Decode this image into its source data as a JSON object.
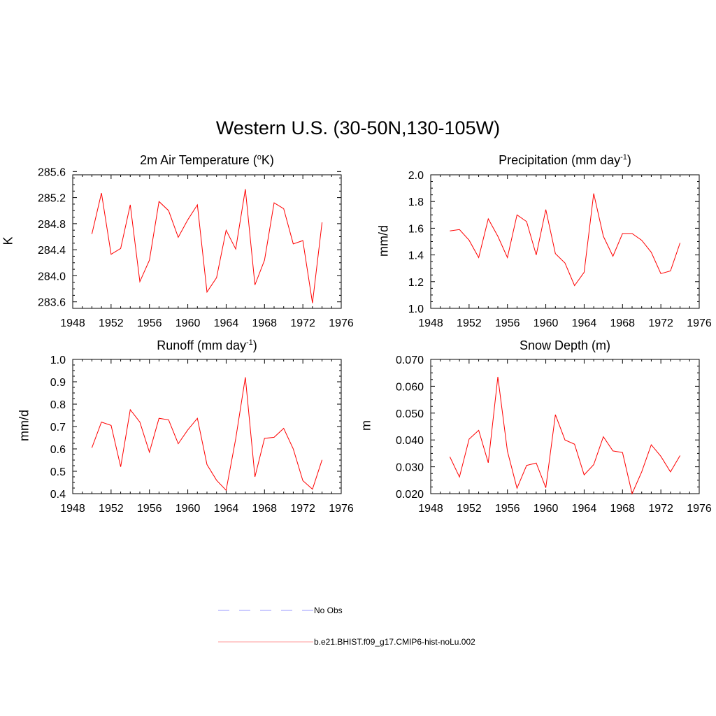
{
  "title": "Western U.S. (30-50N,130-105W)",
  "legend": {
    "items": [
      {
        "label": "No Obs",
        "color": "#9999ff",
        "style": "dashed"
      },
      {
        "label": "b.e21.BHIST.f09_g17.CMIP6-hist-noLu.002",
        "color": "#ff0000",
        "style": "solid"
      }
    ]
  },
  "chart_data": [
    {
      "type": "line",
      "title": "2m Air Temperature (",
      "title_sup": "o",
      "title_end": "K)",
      "ylabel": "K",
      "xlim": [
        1948,
        1976
      ],
      "xticks": [
        1948,
        1952,
        1956,
        1960,
        1964,
        1968,
        1972,
        1976
      ],
      "ylim": [
        283.5,
        285.55
      ],
      "yticks": [
        "283.6",
        "284.0",
        "284.4",
        "284.8",
        "285.2",
        "285.6"
      ],
      "series": [
        {
          "color": "#ff0000",
          "x": [
            1950,
            1951,
            1952,
            1953,
            1954,
            1955,
            1956,
            1957,
            1958,
            1959,
            1960,
            1961,
            1962,
            1963,
            1964,
            1965,
            1966,
            1967,
            1968,
            1969,
            1970,
            1971,
            1972,
            1973,
            1974
          ],
          "y": [
            284.64,
            285.27,
            284.33,
            284.42,
            285.09,
            283.91,
            284.24,
            285.14,
            285.0,
            284.59,
            284.86,
            285.09,
            283.75,
            283.97,
            284.7,
            284.41,
            285.33,
            283.86,
            284.24,
            285.12,
            285.03,
            284.49,
            284.54,
            283.58,
            284.82
          ]
        }
      ]
    },
    {
      "type": "line",
      "title": "Precipitation (mm day",
      "title_sup": "-1",
      "title_end": ")",
      "ylabel": "mm/d",
      "xlim": [
        1948,
        1976
      ],
      "xticks": [
        1948,
        1952,
        1956,
        1960,
        1964,
        1968,
        1972,
        1976
      ],
      "ylim": [
        1.0,
        2.0
      ],
      "yticks": [
        "1.0",
        "1.2",
        "1.4",
        "1.6",
        "1.8",
        "2.0"
      ],
      "series": [
        {
          "color": "#ff0000",
          "x": [
            1950,
            1951,
            1952,
            1953,
            1954,
            1955,
            1956,
            1957,
            1958,
            1959,
            1960,
            1961,
            1962,
            1963,
            1964,
            1965,
            1966,
            1967,
            1968,
            1969,
            1970,
            1971,
            1972,
            1973,
            1974
          ],
          "y": [
            1.58,
            1.59,
            1.51,
            1.38,
            1.67,
            1.54,
            1.38,
            1.7,
            1.65,
            1.4,
            1.74,
            1.41,
            1.34,
            1.17,
            1.27,
            1.86,
            1.54,
            1.39,
            1.56,
            1.56,
            1.51,
            1.42,
            1.26,
            1.28,
            1.49
          ]
        }
      ]
    },
    {
      "type": "line",
      "title": "Runoff (mm day",
      "title_sup": "-1",
      "title_end": ")",
      "ylabel": "mm/d",
      "xlim": [
        1948,
        1976
      ],
      "xticks": [
        1948,
        1952,
        1956,
        1960,
        1964,
        1968,
        1972,
        1976
      ],
      "ylim": [
        0.4,
        1.0
      ],
      "yticks": [
        "0.4",
        "0.5",
        "0.6",
        "0.7",
        "0.8",
        "0.9",
        "1.0"
      ],
      "series": [
        {
          "color": "#ff0000",
          "x": [
            1950,
            1951,
            1952,
            1953,
            1954,
            1955,
            1956,
            1957,
            1958,
            1959,
            1960,
            1961,
            1962,
            1963,
            1964,
            1965,
            1966,
            1967,
            1968,
            1969,
            1970,
            1971,
            1972,
            1973,
            1974
          ],
          "y": [
            0.605,
            0.72,
            0.705,
            0.52,
            0.775,
            0.72,
            0.585,
            0.737,
            0.73,
            0.623,
            0.685,
            0.737,
            0.53,
            0.46,
            0.415,
            0.645,
            0.92,
            0.475,
            0.647,
            0.652,
            0.692,
            0.6,
            0.458,
            0.42,
            0.551
          ]
        }
      ]
    },
    {
      "type": "line",
      "title": "Snow Depth (m)",
      "title_sup": "",
      "title_end": "",
      "ylabel": "m",
      "xlim": [
        1948,
        1976
      ],
      "xticks": [
        1948,
        1952,
        1956,
        1960,
        1964,
        1968,
        1972,
        1976
      ],
      "ylim": [
        0.02,
        0.07
      ],
      "yticks": [
        "0.020",
        "0.030",
        "0.040",
        "0.050",
        "0.060",
        "0.070"
      ],
      "series": [
        {
          "color": "#ff0000",
          "x": [
            1950,
            1951,
            1952,
            1953,
            1954,
            1955,
            1956,
            1957,
            1958,
            1959,
            1960,
            1961,
            1962,
            1963,
            1964,
            1965,
            1966,
            1967,
            1968,
            1969,
            1970,
            1971,
            1972,
            1973,
            1974
          ],
          "y": [
            0.0337,
            0.0262,
            0.0403,
            0.0436,
            0.0315,
            0.0635,
            0.0358,
            0.022,
            0.0305,
            0.0314,
            0.0222,
            0.0494,
            0.04,
            0.0384,
            0.027,
            0.0308,
            0.0412,
            0.0359,
            0.0353,
            0.02,
            0.0281,
            0.0382,
            0.0339,
            0.0281,
            0.0342
          ]
        }
      ]
    }
  ]
}
